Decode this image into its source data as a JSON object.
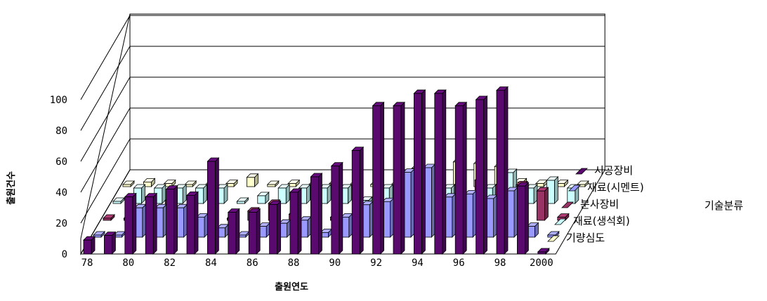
{
  "chart_data": {
    "type": "bar",
    "style": "3d-grouped",
    "xlabel": "출원연도",
    "ylabel": "출원건수",
    "legend_title": "기술분류",
    "legend_position": "right",
    "grid": true,
    "ylim": [
      0,
      100
    ],
    "yticks": [
      "0",
      "20",
      "40",
      "60",
      "80",
      "100"
    ],
    "categories": [
      "78",
      "79",
      "80",
      "81",
      "82",
      "83",
      "84",
      "85",
      "86",
      "87",
      "88",
      "89",
      "90",
      "91",
      "92",
      "93",
      "94",
      "95",
      "96",
      "97",
      "98",
      "99",
      "2000"
    ],
    "xtick_labels": [
      "78",
      "",
      "80",
      "",
      "82",
      "",
      "84",
      "",
      "86",
      "",
      "88",
      "",
      "90",
      "",
      "92",
      "",
      "94",
      "",
      "96",
      "",
      "98",
      "",
      "2000"
    ],
    "series": [
      {
        "name": "시공장비",
        "color": "#5a0a6e",
        "values": [
          9,
          12,
          37,
          37,
          42,
          38,
          60,
          27,
          27,
          32,
          40,
          50,
          57,
          67,
          96,
          96,
          104,
          104,
          96,
          100,
          106,
          44,
          0
        ]
      },
      {
        "name": "재료(시멘트)",
        "color": "#9999ff",
        "values": [
          1,
          1,
          19,
          19,
          19,
          13,
          6,
          1,
          7,
          9,
          11,
          3,
          13,
          21,
          23,
          42,
          45,
          26,
          28,
          25,
          30,
          7,
          0
        ]
      },
      {
        "name": "분사장비",
        "color": "#993366",
        "values": [
          0,
          0,
          2,
          13,
          4,
          1,
          0,
          6,
          11,
          4,
          2,
          2,
          1,
          2,
          3,
          28,
          15,
          23,
          26,
          23,
          23,
          19,
          2
        ]
      },
      {
        "name": "재료(생석회)",
        "color": "#ccffff",
        "values": [
          0,
          10,
          10,
          10,
          10,
          10,
          0,
          5,
          10,
          10,
          10,
          10,
          2,
          10,
          10,
          10,
          10,
          0,
          10,
          20,
          10,
          15,
          10
        ]
      },
      {
        "name": "기량심도",
        "color": "#ffffcc",
        "values": [
          0,
          3,
          2,
          1,
          1,
          2,
          6,
          0,
          2,
          0,
          2,
          1,
          0,
          1,
          12,
          12,
          16,
          15,
          13,
          3,
          2,
          2,
          0
        ]
      }
    ]
  }
}
